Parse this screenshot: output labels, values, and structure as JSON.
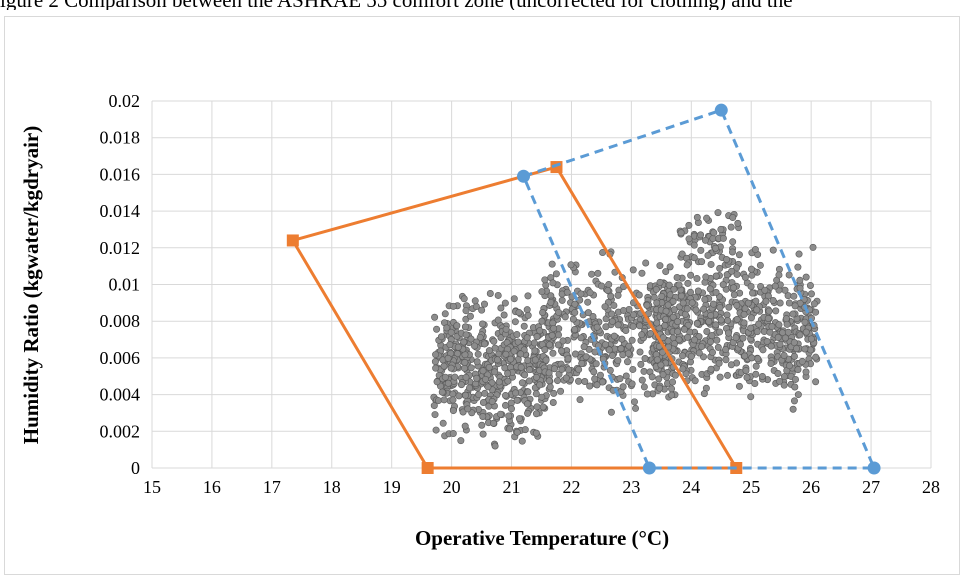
{
  "caption": "igure 2 Comparison between the ASHRAE 55 comfort zone (uncorrected for clothing) and the",
  "chart_data": {
    "type": "scatter",
    "title": "",
    "xlabel": "Operative Temperature (°C)",
    "ylabel": "Humidity Ratio (kgwater/kgdryair)",
    "xlim": [
      15,
      28
    ],
    "ylim": [
      0,
      0.02
    ],
    "x_ticks": [
      "15",
      "16",
      "17",
      "18",
      "19",
      "20",
      "21",
      "22",
      "23",
      "24",
      "25",
      "26",
      "27",
      "28"
    ],
    "y_ticks": [
      "0",
      "0.002",
      "0.004",
      "0.006",
      "0.008",
      "0.01",
      "0.012",
      "0.014",
      "0.016",
      "0.018",
      "0.02"
    ],
    "grid": true,
    "legend": "none",
    "series": [
      {
        "style": "solid-orange-square",
        "color": "#ed7d31",
        "points": [
          [
            17.35,
            0.0124
          ],
          [
            21.75,
            0.0164
          ],
          [
            24.75,
            0.0
          ],
          [
            19.6,
            0.0
          ],
          [
            17.35,
            0.0124
          ]
        ]
      },
      {
        "style": "dashed-blue-circle",
        "color": "#5b9bd5",
        "points": [
          [
            21.2,
            0.0159
          ],
          [
            24.5,
            0.0195
          ],
          [
            27.05,
            0.0
          ],
          [
            23.3,
            0.0
          ],
          [
            21.2,
            0.0159
          ]
        ]
      },
      {
        "style": "scatter-gray",
        "color": "#8c8c8c",
        "cluster_regions": [
          {
            "x": [
              19.7,
              21.6
            ],
            "y": [
              0.0005,
              0.0105
            ],
            "count": 520
          },
          {
            "x": [
              21.5,
              23.7
            ],
            "y": [
              0.0015,
              0.0125
            ],
            "count": 420
          },
          {
            "x": [
              23.4,
              26.1
            ],
            "y": [
              0.0025,
              0.013
            ],
            "count": 620
          },
          {
            "x": [
              23.8,
              24.8
            ],
            "y": [
              0.0095,
              0.0153
            ],
            "count": 60
          }
        ]
      }
    ]
  }
}
